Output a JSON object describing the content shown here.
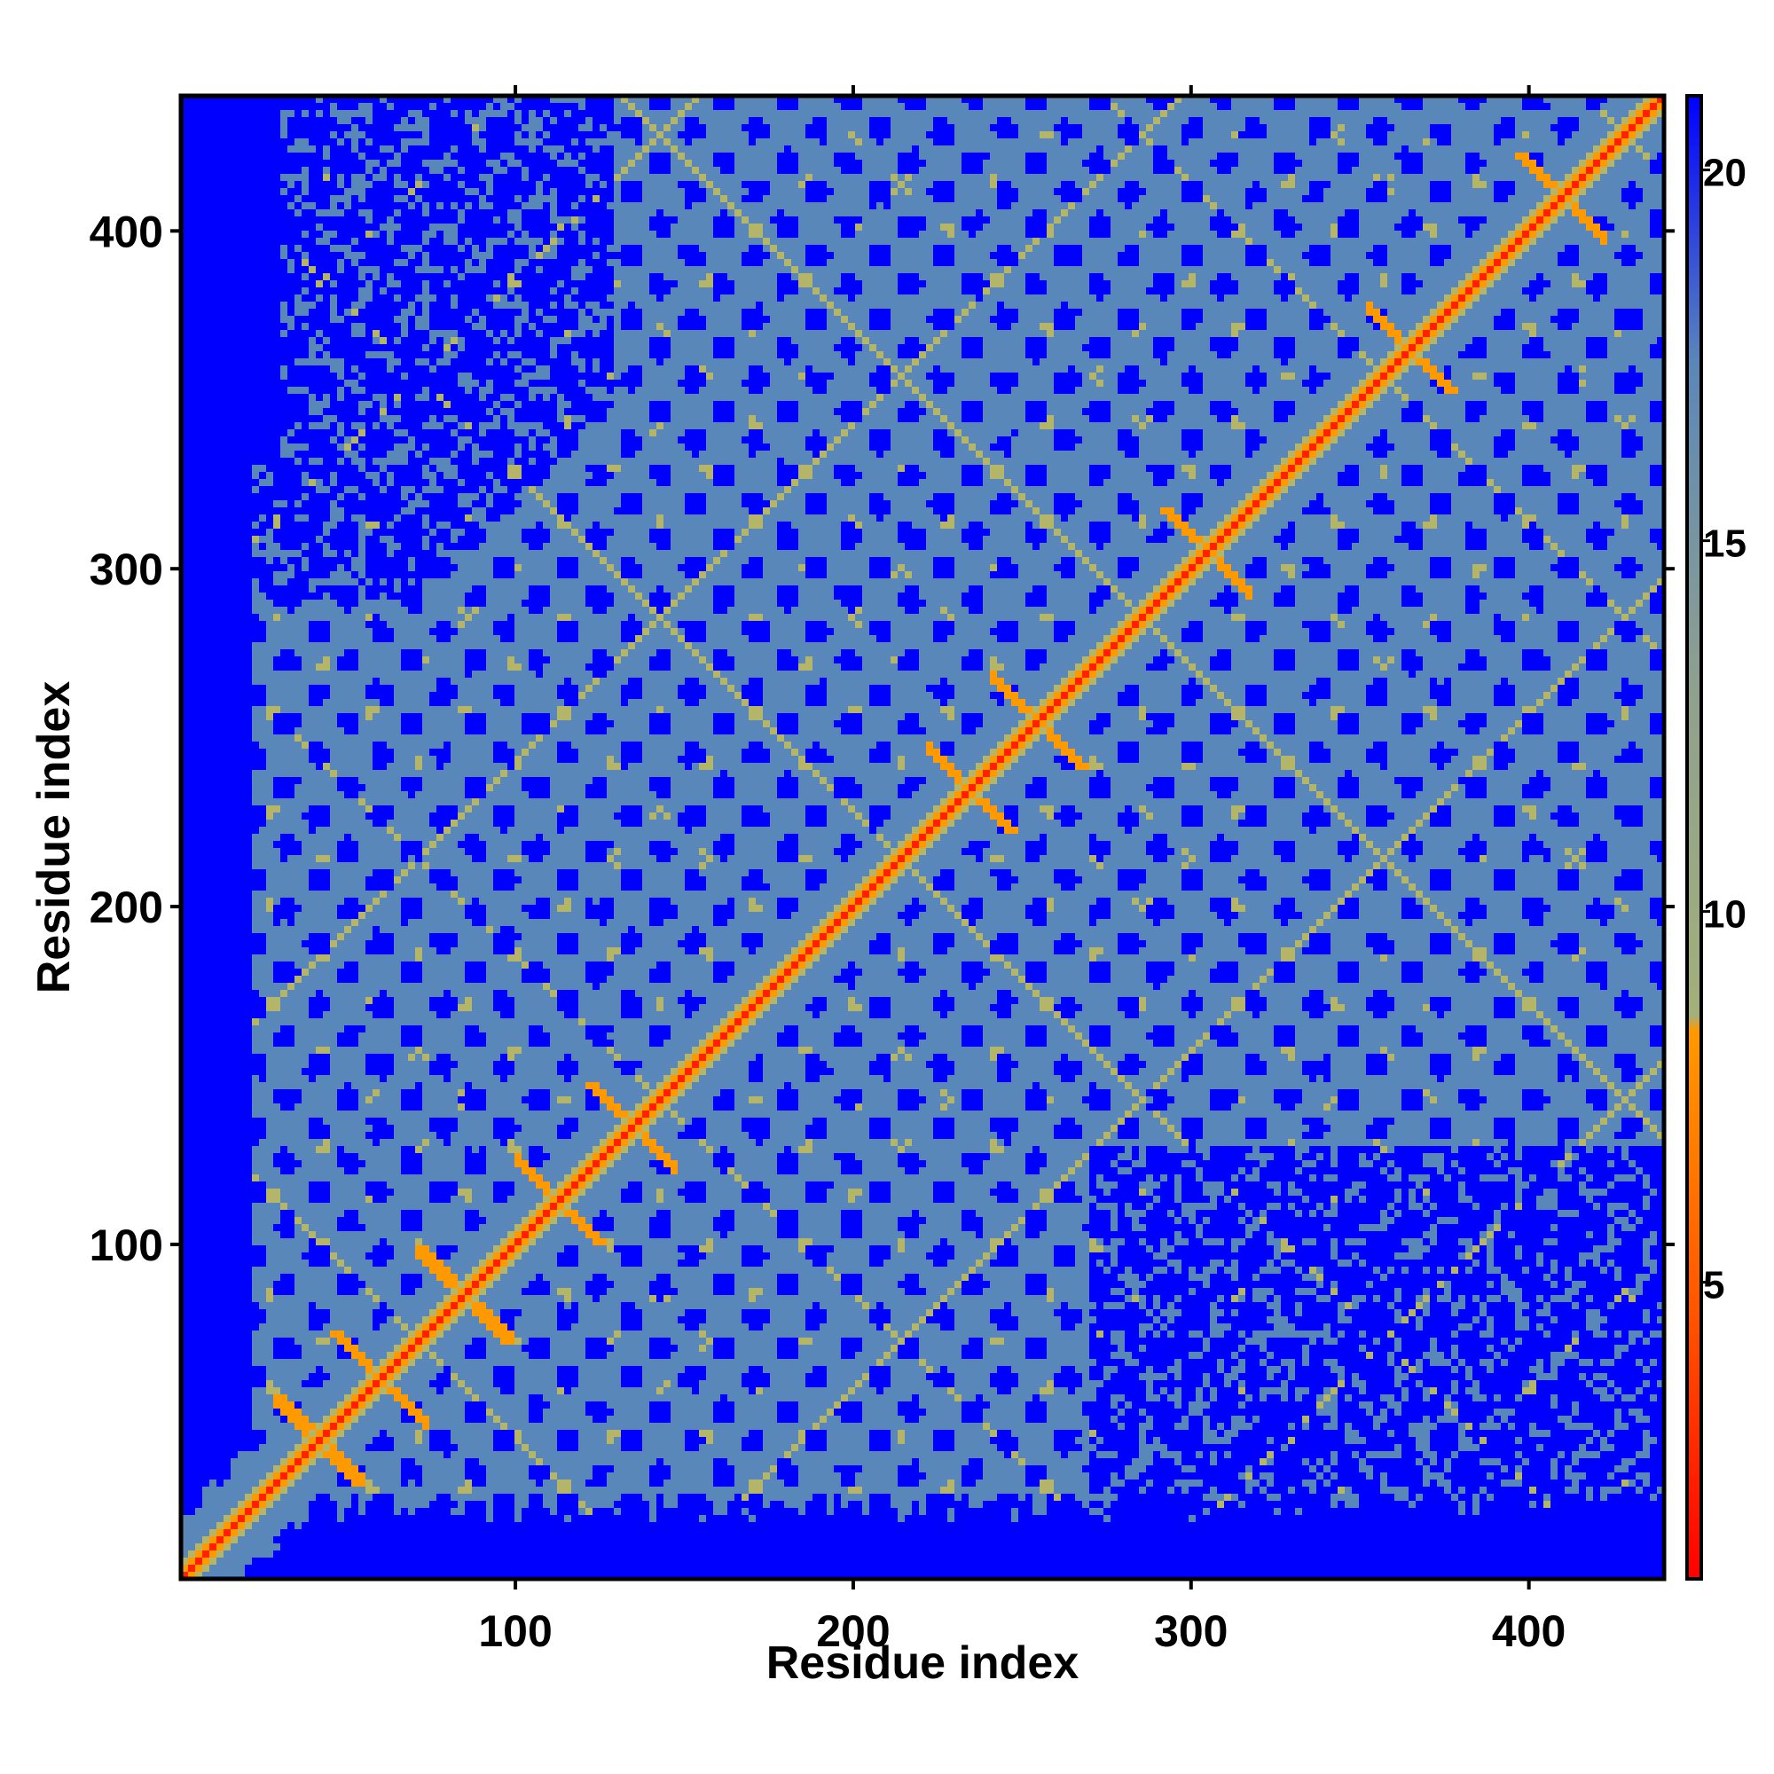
{
  "chart_data": {
    "type": "heatmap",
    "title": "",
    "xlabel": "Residue index",
    "ylabel": "Residue index",
    "xlim": [
      1,
      440
    ],
    "ylim": [
      1,
      440
    ],
    "x_ticks": [
      100,
      200,
      300,
      400
    ],
    "y_ticks": [
      100,
      200,
      300,
      400
    ],
    "colorbar": {
      "range": [
        1,
        21
      ],
      "ticks": [
        5,
        10,
        15,
        20
      ],
      "colors": [
        {
          "stop": 0.0,
          "color": "#ff0000"
        },
        {
          "stop": 0.18,
          "color": "#ff5500"
        },
        {
          "stop": 0.37,
          "color": "#ff9900"
        },
        {
          "stop": 0.38,
          "color": "#a3b07a"
        },
        {
          "stop": 0.6,
          "color": "#8fa08e"
        },
        {
          "stop": 0.82,
          "color": "#5b87b8"
        },
        {
          "stop": 1.0,
          "color": "#0000ff"
        }
      ]
    },
    "background_value_color": "#0000ff",
    "mid_value_color": "#5a87b9",
    "contact_value_color": "#b5b56a",
    "diagonal_value_color": "#ff2200",
    "structure": {
      "matrix_size": 440,
      "diagonal_distance": 1,
      "populated_band": "residues ~20 to ~440, envelope around diagonal",
      "far_distance_value": 21,
      "cross_motifs_at": [
        [
          42,
          42
        ],
        [
          60,
          60
        ],
        [
          85,
          85
        ],
        [
          113,
          113
        ],
        [
          135,
          135
        ],
        [
          235,
          235
        ],
        [
          255,
          255
        ],
        [
          305,
          305
        ],
        [
          365,
          365
        ],
        [
          410,
          410
        ]
      ]
    }
  }
}
